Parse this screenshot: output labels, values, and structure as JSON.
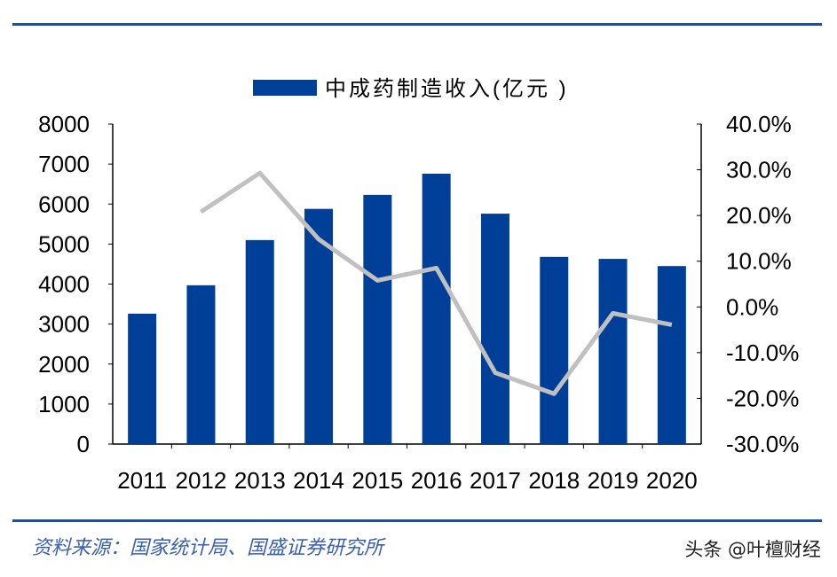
{
  "chart_data": {
    "type": "bar",
    "categories": [
      "2011",
      "2012",
      "2013",
      "2014",
      "2015",
      "2016",
      "2017",
      "2018",
      "2019",
      "2020"
    ],
    "series": [
      {
        "name": "中成药制造收入(亿元 )",
        "type": "bar",
        "axis": "left",
        "color": "#003f98",
        "values": [
          3260,
          3970,
          5100,
          5880,
          6230,
          6760,
          5760,
          4680,
          4630,
          4450
        ]
      },
      {
        "type": "line",
        "axis": "right",
        "color": "#c0c0c0",
        "values": [
          null,
          20.8,
          29.3,
          14.8,
          5.8,
          8.5,
          -14.4,
          -19.0,
          -1.4,
          -3.9
        ]
      }
    ],
    "ylim_left": [
      0,
      8000
    ],
    "yticks_left": [
      "0",
      "1000",
      "2000",
      "3000",
      "4000",
      "5000",
      "6000",
      "7000",
      "8000"
    ],
    "ylim_right": [
      -30,
      40
    ],
    "yticks_right": [
      "-30.0%",
      "-20.0%",
      "-10.0%",
      "0.0%",
      "10.0%",
      "20.0%",
      "30.0%",
      "40.0%"
    ],
    "legend": "top",
    "grid": false
  },
  "footer": {
    "source": "资料来源：国家统计局、国盛证券研究所",
    "watermark": "头条 @叶檀财经"
  }
}
